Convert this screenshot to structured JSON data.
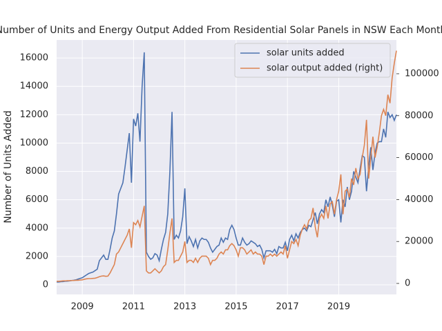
{
  "chart_data": {
    "type": "line",
    "title": "Number of Units and Energy Output Added From Residential Solar Panels in NSW Each Month",
    "ylabel": "Number of Units Added",
    "xlim": [
      "2008-01",
      "2021-04"
    ],
    "xticks": [
      {
        "value": "2009-01",
        "label": "2009"
      },
      {
        "value": "2011-01",
        "label": "2011"
      },
      {
        "value": "2013-01",
        "label": "2013"
      },
      {
        "value": "2015-01",
        "label": "2015"
      },
      {
        "value": "2017-01",
        "label": "2017"
      },
      {
        "value": "2019-01",
        "label": "2019"
      }
    ],
    "ylim": [
      -680,
      17270
    ],
    "yticks": [
      0,
      2000,
      4000,
      6000,
      8000,
      10000,
      12000,
      14000,
      16000
    ],
    "y2lim": [
      -5260,
      116100
    ],
    "y2ticks": [
      0,
      20000,
      40000,
      60000,
      80000,
      100000
    ],
    "grid": true,
    "legend": "upper right",
    "start": "2008-01",
    "series": [
      {
        "name": "solar units added",
        "color": "#4c72b0",
        "values": [
          200,
          200,
          220,
          230,
          250,
          260,
          280,
          300,
          320,
          350,
          400,
          450,
          500,
          600,
          700,
          800,
          850,
          900,
          1000,
          1100,
          1700,
          1900,
          2100,
          1800,
          1800,
          2500,
          3300,
          3800,
          5000,
          6400,
          6800,
          7200,
          8300,
          9500,
          10700,
          7200,
          11700,
          11200,
          12100,
          10100,
          14000,
          16400,
          2300,
          2000,
          1800,
          1900,
          2200,
          2100,
          1700,
          2500,
          3200,
          3700,
          5000,
          8000,
          12200,
          3200,
          3500,
          3300,
          3800,
          4800,
          6800,
          2900,
          3400,
          3100,
          2700,
          3200,
          2600,
          3100,
          3300,
          3200,
          3200,
          3000,
          2600,
          2300,
          2500,
          2700,
          2800,
          3300,
          3000,
          3300,
          3200,
          3900,
          4200,
          3900,
          3300,
          2800,
          2800,
          3300,
          3000,
          2800,
          2900,
          3100,
          3000,
          2900,
          2700,
          2800,
          2500,
          1900,
          2400,
          2400,
          2400,
          2300,
          2500,
          2200,
          2700,
          2600,
          2600,
          3000,
          2400,
          3200,
          3500,
          3100,
          3600,
          3300,
          3700,
          3900,
          4000,
          3800,
          4200,
          4100,
          4600,
          5100,
          4300,
          5000,
          5300,
          5100,
          6000,
          5500,
          6200,
          5600,
          4800,
          5900,
          6000,
          4400,
          6000,
          5500,
          6900,
          6000,
          6600,
          8000,
          7600,
          7200,
          8200,
          9100,
          9000,
          6600,
          8300,
          9700,
          8100,
          9300,
          10000,
          10100,
          10100,
          11000,
          10400,
          12200,
          11800,
          12000,
          11600,
          12000
        ]
      },
      {
        "name": "solar output added (right)",
        "color": "#dd8452",
        "axis": "y2",
        "values": [
          1000,
          1000,
          1100,
          1200,
          1200,
          1300,
          1300,
          1400,
          1400,
          1500,
          1500,
          1600,
          1700,
          2000,
          2200,
          2300,
          2300,
          2400,
          2500,
          2800,
          3200,
          3500,
          3600,
          3400,
          3500,
          5000,
          7000,
          9000,
          14000,
          15000,
          17000,
          19000,
          21000,
          23000,
          26000,
          17000,
          29000,
          28000,
          30000,
          27000,
          32000,
          37000,
          6000,
          5000,
          5000,
          6000,
          7000,
          6000,
          5000,
          6000,
          8000,
          9000,
          16000,
          24000,
          31000,
          10000,
          11000,
          11000,
          13000,
          15000,
          20000,
          10000,
          11000,
          11000,
          10000,
          12000,
          10000,
          12000,
          13000,
          13000,
          13000,
          12000,
          9000,
          11000,
          11000,
          12000,
          14000,
          15000,
          14000,
          16000,
          16000,
          18000,
          19000,
          18000,
          16000,
          13000,
          17000,
          17000,
          16000,
          14000,
          15000,
          16000,
          14000,
          15000,
          14000,
          14000,
          13000,
          9000,
          13000,
          13000,
          14000,
          13000,
          14000,
          13000,
          14000,
          15000,
          14000,
          18000,
          12000,
          16000,
          20000,
          19000,
          21000,
          18000,
          23000,
          26000,
          28000,
          26000,
          30000,
          31000,
          36000,
          27000,
          22000,
          31000,
          33000,
          31000,
          37000,
          31000,
          38000,
          39000,
          33000,
          40000,
          44000,
          52000,
          33000,
          44000,
          45000,
          41000,
          50000,
          47000,
          55000,
          50000,
          52000,
          60000,
          66000,
          78000,
          50000,
          60000,
          70000,
          60000,
          65000,
          72000,
          80000,
          83000,
          80000,
          90000,
          86000,
          98000,
          105000,
          111000
        ]
      }
    ]
  }
}
